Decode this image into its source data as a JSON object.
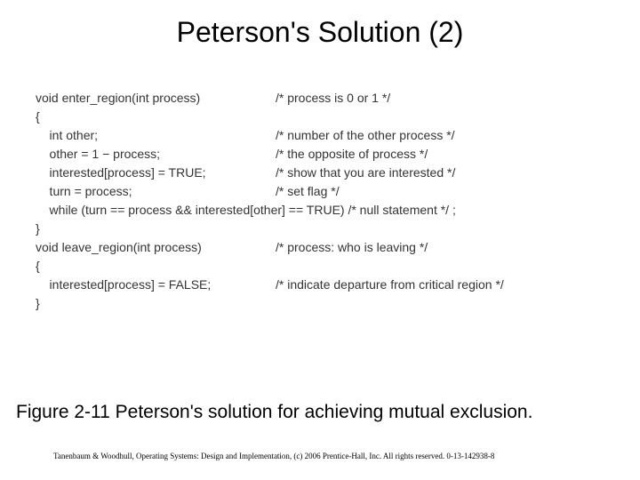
{
  "title": "Peterson's Solution (2)",
  "code": {
    "lines": [
      {
        "left": "void enter_region(int process)",
        "comment": "/* process is 0 or 1 */"
      },
      {
        "left": "{",
        "comment": ""
      },
      {
        "left": "    int other;",
        "comment": "/* number of the other process */"
      },
      {
        "left": "",
        "comment": ""
      },
      {
        "left": "    other = 1 − process;",
        "comment": "/* the opposite of process */"
      },
      {
        "left": "    interested[process] = TRUE;",
        "comment": "/* show that you are interested */"
      },
      {
        "left": "    turn = process;",
        "comment": "/* set flag */"
      },
      {
        "left": "    while (turn == process && interested[other] == TRUE) /* null statement */ ;",
        "comment": ""
      },
      {
        "left": "}",
        "comment": ""
      },
      {
        "left": "",
        "comment": ""
      },
      {
        "left": "void leave_region(int process)",
        "comment": "/* process: who is leaving */"
      },
      {
        "left": "{",
        "comment": ""
      },
      {
        "left": "    interested[process] = FALSE;",
        "comment": "/* indicate departure from critical region */"
      },
      {
        "left": "}",
        "comment": ""
      }
    ]
  },
  "caption": "Figure 2-11 Peterson's solution for achieving mutual exclusion.",
  "footer": "Tanenbaum & Woodhull, Operating Systems: Design and Implementation, (c) 2006 Prentice-Hall, Inc. All rights reserved. 0-13-142938-8"
}
